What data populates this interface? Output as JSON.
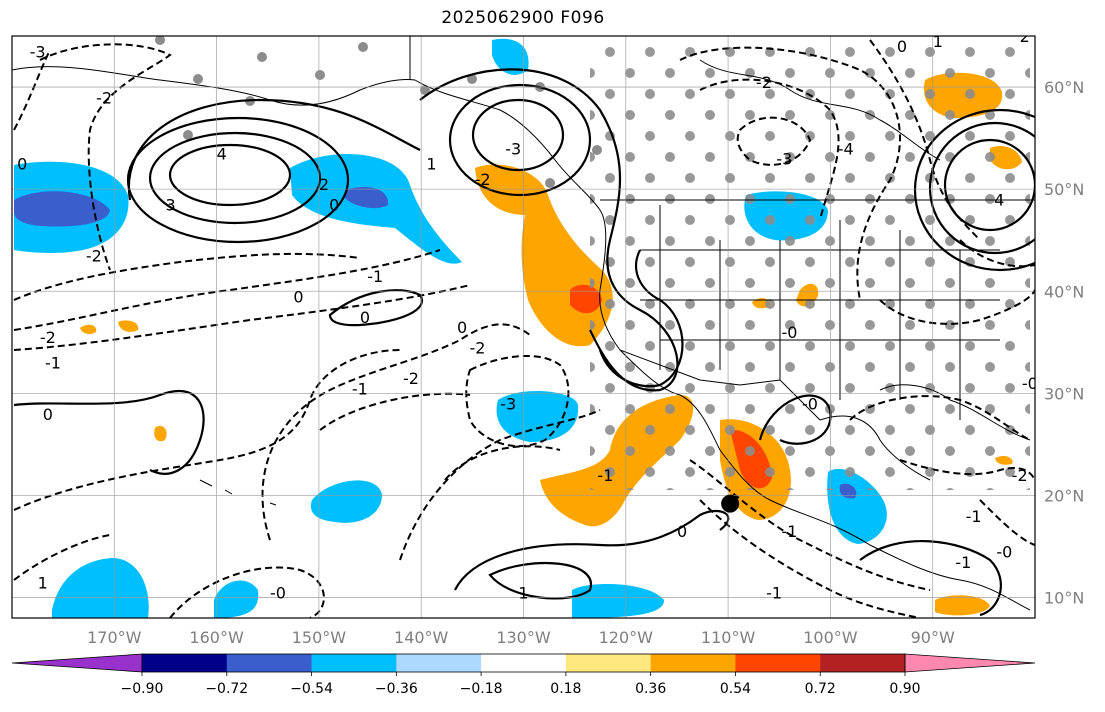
{
  "title": "2025062900 F096",
  "map": {
    "projection": "plate-carree",
    "lon_range": [
      -180,
      -80
    ],
    "lat_range": [
      8,
      65
    ],
    "lon_ticks": [
      {
        "value": -170,
        "label": "170°W"
      },
      {
        "value": -160,
        "label": "160°W"
      },
      {
        "value": -150,
        "label": "150°W"
      },
      {
        "value": -140,
        "label": "140°W"
      },
      {
        "value": -130,
        "label": "130°W"
      },
      {
        "value": -120,
        "label": "120°W"
      },
      {
        "value": -110,
        "label": "110°W"
      },
      {
        "value": -100,
        "label": "100°W"
      },
      {
        "value": -90,
        "label": "90°W"
      }
    ],
    "lat_ticks": [
      {
        "value": 60,
        "label": "60°N"
      },
      {
        "value": 50,
        "label": "50°N"
      },
      {
        "value": 40,
        "label": "40°N"
      },
      {
        "value": 30,
        "label": "30°N"
      },
      {
        "value": 20,
        "label": "20°N"
      },
      {
        "value": 10,
        "label": "10°N"
      }
    ],
    "gridlines": true,
    "contour_labels": [
      {
        "text": "4",
        "lon": -159.5,
        "lat": 53.5
      },
      {
        "text": "3",
        "lon": -164.5,
        "lat": 48.5
      },
      {
        "text": "2",
        "lon": -149.5,
        "lat": 50.5
      },
      {
        "text": "0",
        "lon": -148.5,
        "lat": 48.5
      },
      {
        "text": "-1",
        "lon": -144.5,
        "lat": 41.5
      },
      {
        "text": "-2",
        "lon": -171,
        "lat": 59
      },
      {
        "text": "-2",
        "lon": -172,
        "lat": 43.5
      },
      {
        "text": "-2",
        "lon": -176.5,
        "lat": 35.5
      },
      {
        "text": "-1",
        "lon": -176,
        "lat": 33
      },
      {
        "text": "-3",
        "lon": -177.5,
        "lat": 63.5
      },
      {
        "text": "0",
        "lon": -179,
        "lat": 52.5
      },
      {
        "text": "0",
        "lon": -152,
        "lat": 39.5
      },
      {
        "text": "0",
        "lon": -145.5,
        "lat": 37.5
      },
      {
        "text": "0",
        "lon": -176.5,
        "lat": 28
      },
      {
        "text": "1",
        "lon": -139,
        "lat": 52.5
      },
      {
        "text": "-2",
        "lon": -134,
        "lat": 51
      },
      {
        "text": "-3",
        "lon": -131,
        "lat": 54
      },
      {
        "text": "0",
        "lon": -136,
        "lat": 36.5
      },
      {
        "text": "-2",
        "lon": -134.5,
        "lat": 34.5
      },
      {
        "text": "-1",
        "lon": -146,
        "lat": 30.5
      },
      {
        "text": "-2",
        "lon": -141,
        "lat": 31.5
      },
      {
        "text": "-3",
        "lon": -131.5,
        "lat": 29
      },
      {
        "text": "-1",
        "lon": -122,
        "lat": 22
      },
      {
        "text": "0",
        "lon": -114.5,
        "lat": 16.5
      },
      {
        "text": "1",
        "lon": -130,
        "lat": 10.5
      },
      {
        "text": "-1",
        "lon": -104,
        "lat": 16.5
      },
      {
        "text": "-1",
        "lon": -105.5,
        "lat": 10.5
      },
      {
        "text": "-0",
        "lon": -102,
        "lat": 29
      },
      {
        "text": "-0",
        "lon": -104,
        "lat": 36
      },
      {
        "text": "-2",
        "lon": -106.5,
        "lat": 60.5
      },
      {
        "text": "-3",
        "lon": -104.5,
        "lat": 53
      },
      {
        "text": "-4",
        "lon": -98.5,
        "lat": 54
      },
      {
        "text": "4",
        "lon": -83.5,
        "lat": 49
      },
      {
        "text": "-2",
        "lon": -81.5,
        "lat": 22
      },
      {
        "text": "-1",
        "lon": -86,
        "lat": 18
      },
      {
        "text": "-0",
        "lon": -83,
        "lat": 14.5
      },
      {
        "text": "-1",
        "lon": -87,
        "lat": 13.5
      },
      {
        "text": "2",
        "lon": -81,
        "lat": 65
      },
      {
        "text": "0",
        "lon": -93,
        "lat": 64
      },
      {
        "text": "1",
        "lon": -89.5,
        "lat": 64.5
      },
      {
        "text": "-0",
        "lon": -154,
        "lat": 10.5
      },
      {
        "text": "-0",
        "lon": -80.5,
        "lat": 31
      },
      {
        "text": "1",
        "lon": -177,
        "lat": 11.5
      }
    ],
    "marker": {
      "lon": -109.8,
      "lat": 19.2
    }
  },
  "colorbar": {
    "ticks": [
      "−0.90",
      "−0.72",
      "−0.54",
      "−0.36",
      "−0.18",
      "0.18",
      "0.36",
      "0.54",
      "0.72",
      "0.90"
    ],
    "colors": [
      "#9932cc",
      "#00008b",
      "#3a5fcd",
      "#00bfff",
      "#add8ff",
      "#ffffff",
      "#ffe880",
      "#ffa500",
      "#ff4500",
      "#b22222",
      "#ff88b0"
    ],
    "extend": "both"
  }
}
